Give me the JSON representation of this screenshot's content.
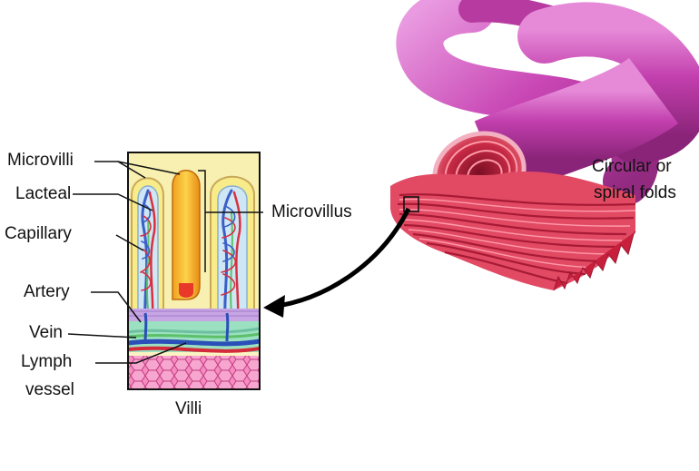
{
  "labels": {
    "microvilli": "Microvilli",
    "lacteal": "Lacteal",
    "capillary": "Capillary",
    "artery": "Artery",
    "vein": "Vein",
    "lymph_line1": "Lymph",
    "lymph_line2": "vessel",
    "microvillus": "Microvillus",
    "villi": "Villi",
    "folds_line1": "Circular or",
    "folds_line2": "spiral folds"
  },
  "colors": {
    "intestine": "#c83fb0",
    "cut_section": "#d8304a",
    "villus_yellow": "#f5e06a",
    "villus_orange": "#f59a1c",
    "capillary_red": "#d42a3a",
    "vein_blue": "#2a4fb8",
    "lacteal_green": "#5cc06a",
    "tissue_pink": "#f06aa8",
    "muscle_purple": "#b48ad8"
  }
}
